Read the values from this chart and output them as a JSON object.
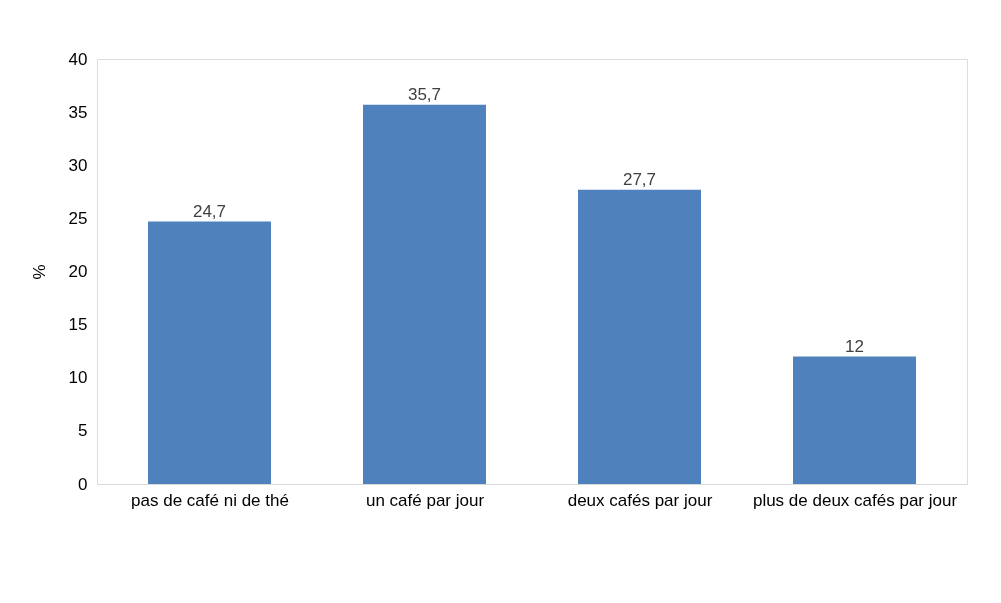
{
  "chart_data": {
    "type": "bar",
    "ylabel": "%",
    "categories": [
      "pas de café ni de thé",
      "un café par jour",
      "deux cafés  par jour",
      "plus de deux cafés par jour"
    ],
    "values": [
      24.7,
      35.7,
      27.7,
      12
    ],
    "value_labels": [
      "24,7",
      "35,7",
      "27,7",
      "12"
    ],
    "color": "#4f81bd",
    "ylim": [
      0,
      40
    ],
    "yticks": [
      0,
      5,
      10,
      15,
      20,
      25,
      30,
      35,
      40
    ],
    "grid": false
  }
}
